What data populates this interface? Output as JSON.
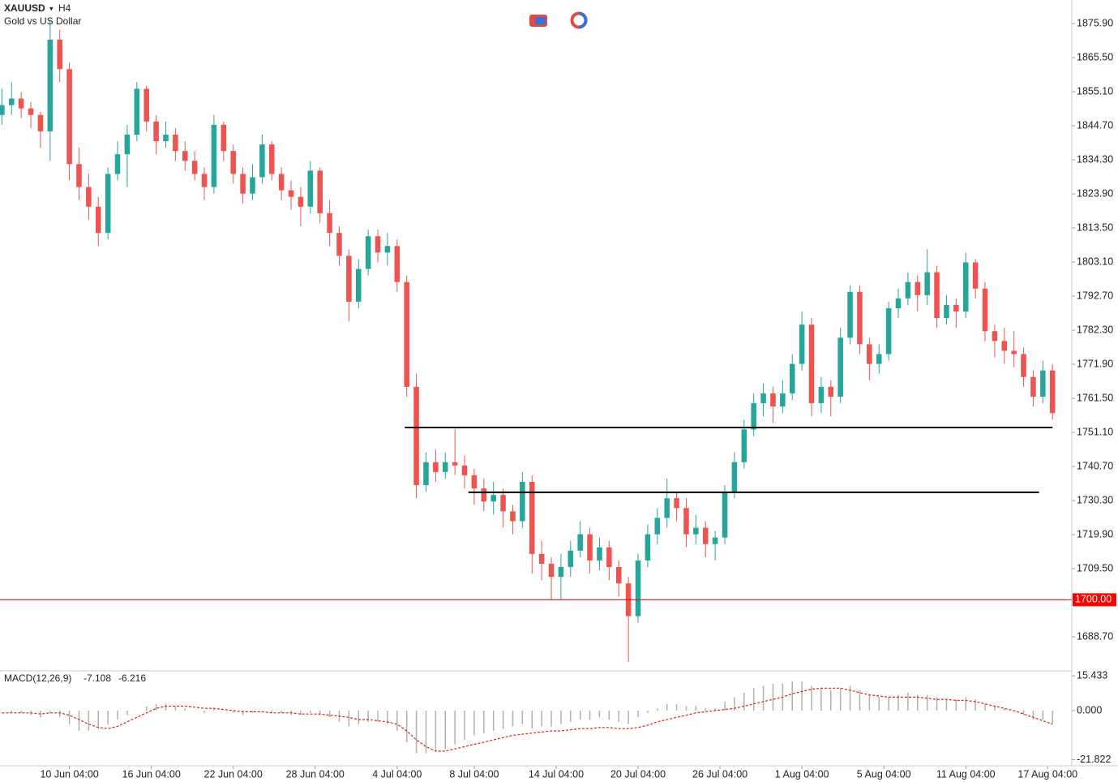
{
  "chart_data": {
    "type": "candlestick",
    "symbol": "XAUUSD",
    "symbol_menu": "▾",
    "timeframe": "H4",
    "description": "Gold vs US Dollar",
    "up_color": "#26a69a",
    "down_color": "#ef5350",
    "xlim": [
      -0.2,
      111
    ],
    "xticks": [
      {
        "value": 7,
        "label": "10 Jun 04:00"
      },
      {
        "value": 15.5,
        "label": "16 Jun 04:00"
      },
      {
        "value": 24,
        "label": "22 Jun 04:00"
      },
      {
        "value": 32.5,
        "label": "28 Jun 04:00"
      },
      {
        "value": 41,
        "label": "4 Jul 04:00"
      },
      {
        "value": 49,
        "label": "8 Jul 04:00"
      },
      {
        "value": 57.5,
        "label": "14 Jul 04:00"
      },
      {
        "value": 66,
        "label": "20 Jul 04:00"
      },
      {
        "value": 74.5,
        "label": "26 Jul 04:00"
      },
      {
        "value": 83,
        "label": "1 Aug 04:00"
      },
      {
        "value": 91.5,
        "label": "5 Aug 04:00"
      },
      {
        "value": 100,
        "label": "11 Aug 04:00"
      },
      {
        "value": 108.5,
        "label": "17 Aug 04:00"
      }
    ],
    "ylim": [
      1678.3,
      1883.1
    ],
    "yticks": [
      {
        "value": 1875.9,
        "label": "1875.90"
      },
      {
        "value": 1865.5,
        "label": "1865.50"
      },
      {
        "value": 1855.1,
        "label": "1855.10"
      },
      {
        "value": 1844.7,
        "label": "1844.70"
      },
      {
        "value": 1834.3,
        "label": "1834.30"
      },
      {
        "value": 1823.9,
        "label": "1823.90"
      },
      {
        "value": 1813.5,
        "label": "1813.50"
      },
      {
        "value": 1803.1,
        "label": "1803.10"
      },
      {
        "value": 1792.7,
        "label": "1792.70"
      },
      {
        "value": 1782.3,
        "label": "1782.30"
      },
      {
        "value": 1771.9,
        "label": "1771.90"
      },
      {
        "value": 1761.5,
        "label": "1761.50"
      },
      {
        "value": 1751.1,
        "label": "1751.10"
      },
      {
        "value": 1740.7,
        "label": "1740.70"
      },
      {
        "value": 1730.3,
        "label": "1730.30"
      },
      {
        "value": 1719.9,
        "label": "1719.90"
      },
      {
        "value": 1709.5,
        "label": "1709.50"
      },
      {
        "value": 1688.7,
        "label": "1688.70"
      }
    ],
    "candles": [
      [
        1848,
        1856,
        1845,
        1851
      ],
      [
        1851,
        1858,
        1848,
        1853
      ],
      [
        1853,
        1855,
        1847,
        1850
      ],
      [
        1850,
        1852,
        1844,
        1848
      ],
      [
        1848,
        1849,
        1838,
        1843
      ],
      [
        1843,
        1877,
        1834,
        1871
      ],
      [
        1871,
        1874,
        1858,
        1862
      ],
      [
        1862,
        1864,
        1828,
        1833
      ],
      [
        1833,
        1838,
        1822,
        1826
      ],
      [
        1826,
        1830,
        1816,
        1820
      ],
      [
        1820,
        1823,
        1808,
        1812
      ],
      [
        1812,
        1832,
        1810,
        1830
      ],
      [
        1830,
        1840,
        1828,
        1836
      ],
      [
        1836,
        1845,
        1826,
        1842
      ],
      [
        1842,
        1858,
        1840,
        1856
      ],
      [
        1856,
        1857,
        1843,
        1846
      ],
      [
        1846,
        1848,
        1836,
        1840
      ],
      [
        1840,
        1846,
        1838,
        1842
      ],
      [
        1842,
        1844,
        1834,
        1837
      ],
      [
        1837,
        1840,
        1831,
        1834
      ],
      [
        1834,
        1837,
        1828,
        1830
      ],
      [
        1830,
        1832,
        1822,
        1826
      ],
      [
        1826,
        1848,
        1824,
        1845
      ],
      [
        1845,
        1846,
        1834,
        1837
      ],
      [
        1837,
        1839,
        1827,
        1830
      ],
      [
        1830,
        1832,
        1821,
        1824
      ],
      [
        1824,
        1833,
        1822,
        1829
      ],
      [
        1829,
        1842,
        1827,
        1839
      ],
      [
        1839,
        1840,
        1828,
        1830
      ],
      [
        1830,
        1832,
        1822,
        1825
      ],
      [
        1825,
        1828,
        1819,
        1823
      ],
      [
        1823,
        1826,
        1814,
        1820
      ],
      [
        1820,
        1834,
        1818,
        1831
      ],
      [
        1831,
        1832,
        1815,
        1818
      ],
      [
        1818,
        1822,
        1808,
        1812
      ],
      [
        1812,
        1814,
        1802,
        1805
      ],
      [
        1805,
        1807,
        1785,
        1791
      ],
      [
        1791,
        1804,
        1789,
        1801
      ],
      [
        1801,
        1813,
        1799,
        1811
      ],
      [
        1811,
        1813,
        1803,
        1806
      ],
      [
        1806,
        1812,
        1802,
        1808
      ],
      [
        1808,
        1810,
        1794,
        1797
      ],
      [
        1797,
        1799,
        1762,
        1765
      ],
      [
        1765,
        1769,
        1731,
        1735
      ],
      [
        1735,
        1745,
        1733,
        1742
      ],
      [
        1742,
        1746,
        1736,
        1739
      ],
      [
        1739,
        1745,
        1737,
        1742
      ],
      [
        1742,
        1752,
        1738,
        1741
      ],
      [
        1741,
        1744,
        1734,
        1738
      ],
      [
        1738,
        1740,
        1729,
        1734
      ],
      [
        1734,
        1737,
        1727,
        1730
      ],
      [
        1730,
        1736,
        1726,
        1732
      ],
      [
        1732,
        1734,
        1722,
        1727
      ],
      [
        1727,
        1729,
        1720,
        1724
      ],
      [
        1724,
        1739,
        1722,
        1736
      ],
      [
        1736,
        1738,
        1708,
        1714
      ],
      [
        1714,
        1718,
        1706,
        1711
      ],
      [
        1711,
        1713,
        1700,
        1707
      ],
      [
        1707,
        1714,
        1700,
        1710
      ],
      [
        1710,
        1718,
        1707,
        1715
      ],
      [
        1715,
        1724,
        1713,
        1720
      ],
      [
        1720,
        1722,
        1708,
        1712
      ],
      [
        1712,
        1719,
        1709,
        1716
      ],
      [
        1716,
        1718,
        1706,
        1710
      ],
      [
        1710,
        1712,
        1701,
        1705
      ],
      [
        1705,
        1707,
        1681,
        1695
      ],
      [
        1695,
        1714,
        1693,
        1712
      ],
      [
        1712,
        1723,
        1710,
        1720
      ],
      [
        1720,
        1728,
        1717,
        1725
      ],
      [
        1725,
        1737,
        1722,
        1731
      ],
      [
        1731,
        1733,
        1724,
        1728
      ],
      [
        1728,
        1731,
        1716,
        1720
      ],
      [
        1720,
        1726,
        1717,
        1722
      ],
      [
        1722,
        1724,
        1713,
        1717
      ],
      [
        1717,
        1721,
        1712,
        1719
      ],
      [
        1719,
        1735,
        1717,
        1733
      ],
      [
        1733,
        1745,
        1731,
        1742
      ],
      [
        1742,
        1755,
        1740,
        1752
      ],
      [
        1752,
        1763,
        1750,
        1760
      ],
      [
        1760,
        1766,
        1756,
        1763
      ],
      [
        1763,
        1765,
        1754,
        1759
      ],
      [
        1759,
        1767,
        1757,
        1763
      ],
      [
        1763,
        1775,
        1761,
        1772
      ],
      [
        1772,
        1788,
        1770,
        1784
      ],
      [
        1784,
        1786,
        1756,
        1760
      ],
      [
        1760,
        1768,
        1757,
        1765
      ],
      [
        1765,
        1767,
        1756,
        1762
      ],
      [
        1762,
        1783,
        1760,
        1780
      ],
      [
        1780,
        1796,
        1778,
        1794
      ],
      [
        1794,
        1796,
        1775,
        1778
      ],
      [
        1778,
        1780,
        1767,
        1772
      ],
      [
        1772,
        1778,
        1769,
        1775
      ],
      [
        1775,
        1791,
        1773,
        1789
      ],
      [
        1789,
        1795,
        1786,
        1792
      ],
      [
        1792,
        1800,
        1790,
        1797
      ],
      [
        1797,
        1799,
        1788,
        1793
      ],
      [
        1793,
        1807,
        1790,
        1800
      ],
      [
        1800,
        1802,
        1783,
        1786
      ],
      [
        1786,
        1793,
        1784,
        1790
      ],
      [
        1790,
        1792,
        1783,
        1788
      ],
      [
        1788,
        1806,
        1786,
        1803
      ],
      [
        1803,
        1804,
        1792,
        1795
      ],
      [
        1795,
        1797,
        1779,
        1782
      ],
      [
        1782,
        1784,
        1774,
        1779
      ],
      [
        1779,
        1783,
        1772,
        1776
      ],
      [
        1776,
        1782,
        1771,
        1775
      ],
      [
        1775,
        1777,
        1765,
        1768
      ],
      [
        1768,
        1770,
        1759,
        1762
      ],
      [
        1762,
        1773,
        1760,
        1770
      ],
      [
        1770,
        1772,
        1755,
        1757
      ]
    ],
    "price_line": {
      "price": 1700,
      "label": "1700.00",
      "color": "#ff0000"
    },
    "drawings": [
      {
        "price": 1752.6,
        "from": 41.8,
        "to": 109
      },
      {
        "price": 1732.8,
        "from": 48.4,
        "to": 107.6
      }
    ],
    "macd": {
      "label": "MACD(12,26,9)",
      "macd_value": -7.108,
      "signal_value": -6.216,
      "ylim": [
        -24.5,
        17.3
      ],
      "yticks": [
        {
          "value": 15.433,
          "label": "15.433"
        },
        {
          "value": 0,
          "label": "0.000"
        },
        {
          "value": -21.822,
          "label": "-21.822"
        }
      ],
      "hist_color": "#b0b0b0",
      "signal_color": "#e02020",
      "histogram": [
        0,
        -1,
        -1,
        -2,
        -3,
        -1,
        -3,
        -6,
        -9,
        -9,
        -8,
        -6,
        -4,
        -2,
        0,
        2,
        3,
        3,
        2,
        1,
        0,
        -1,
        1,
        0,
        -1,
        -2,
        -1,
        0,
        -1,
        -1,
        -2,
        -2,
        -1,
        -2,
        -3,
        -5,
        -7,
        -6,
        -5,
        -5,
        -6,
        -9,
        -14,
        -19,
        -19,
        -18,
        -17,
        -15,
        -13,
        -11,
        -10,
        -9,
        -8,
        -7,
        -6,
        -8,
        -7,
        -7,
        -6,
        -5,
        -4,
        -4,
        -3,
        -4,
        -5,
        -6,
        -3,
        -1,
        1,
        3,
        3,
        2,
        2,
        1,
        1,
        4,
        6,
        8,
        10,
        11,
        12,
        12,
        13,
        13,
        11,
        10,
        9,
        10,
        11,
        9,
        7,
        6,
        6,
        7,
        8,
        7,
        7,
        6,
        5,
        5,
        6,
        5,
        3,
        2,
        1,
        0,
        -2,
        -4,
        -4,
        -6
      ],
      "signal": [
        -1,
        -1,
        -1,
        -1,
        -1.5,
        -1,
        -1,
        -2,
        -4,
        -6,
        -7.5,
        -8,
        -7,
        -5,
        -3,
        -1,
        1,
        2,
        2,
        2,
        1.5,
        1,
        1,
        0.5,
        0,
        -0.5,
        -0.5,
        -0.5,
        -1,
        -1,
        -1,
        -1.5,
        -1.5,
        -1.5,
        -2,
        -2.5,
        -3,
        -4,
        -4,
        -4.5,
        -5,
        -6,
        -9,
        -13,
        -16,
        -18,
        -18,
        -17,
        -16,
        -15,
        -14,
        -13,
        -12,
        -11,
        -10.5,
        -10,
        -9.5,
        -9,
        -9,
        -8.5,
        -8,
        -8,
        -7.5,
        -7.5,
        -8,
        -8,
        -7.5,
        -6.5,
        -5,
        -4,
        -3,
        -2,
        -1,
        -0.5,
        0,
        0.5,
        1,
        2,
        3,
        4,
        5,
        6,
        7.5,
        8.5,
        9.5,
        10,
        10,
        10,
        9,
        8,
        7,
        6.5,
        6,
        6,
        6,
        6,
        5.5,
        5,
        5,
        4.5,
        4.5,
        4,
        3,
        2,
        1,
        0,
        -1.5,
        -3,
        -4.5,
        -6
      ]
    }
  }
}
